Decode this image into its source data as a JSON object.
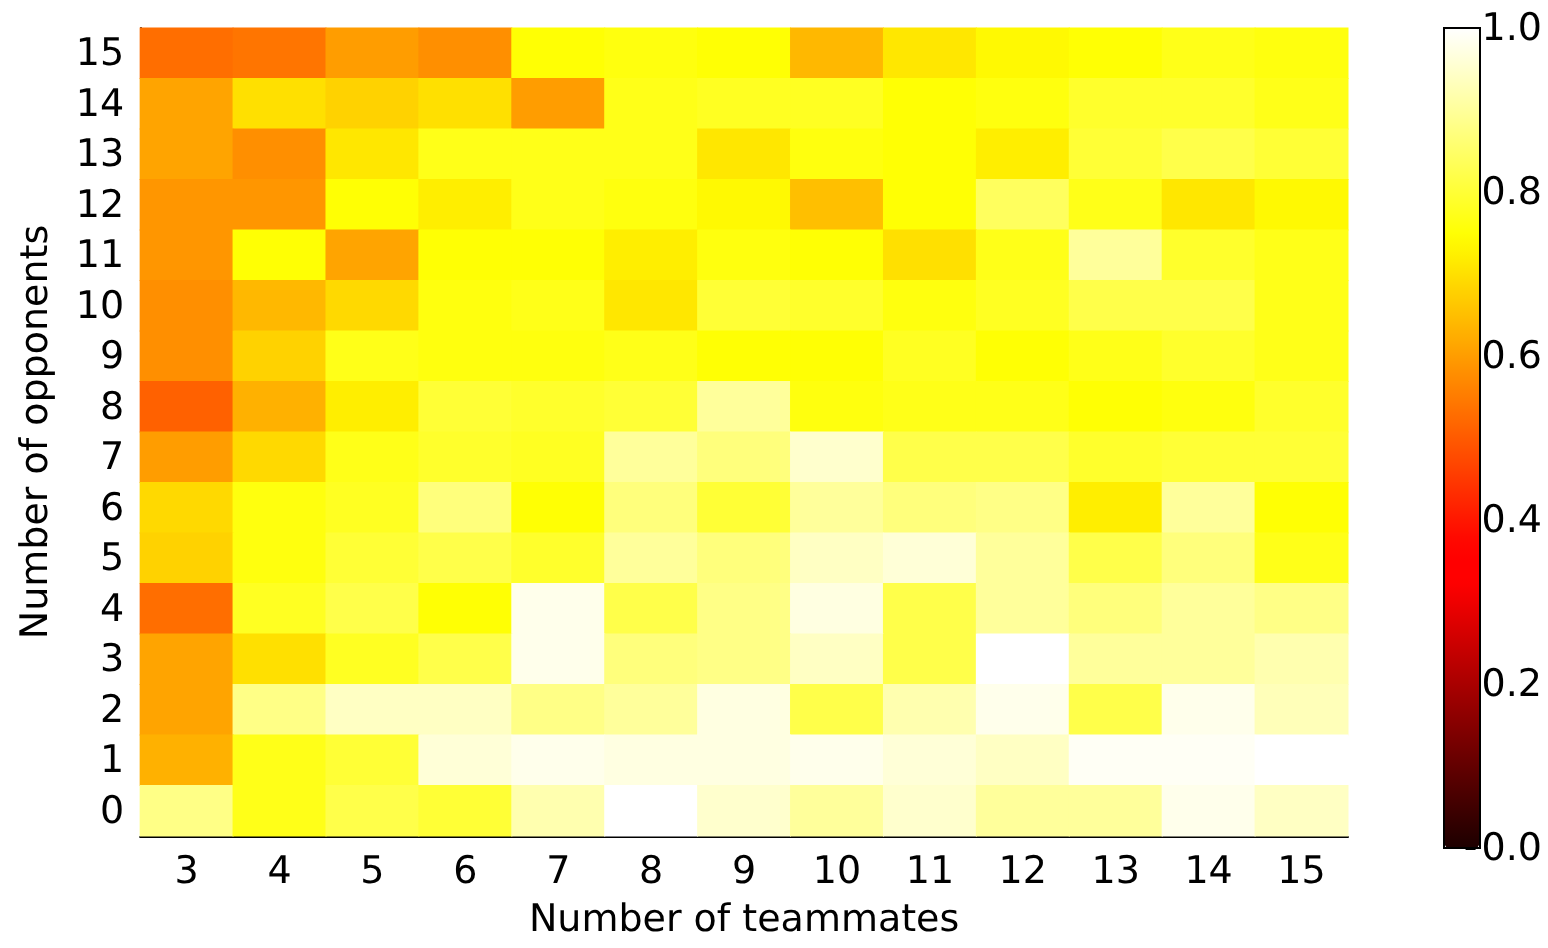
{
  "chart_data": {
    "type": "heatmap",
    "xlabel": "Number of teammates",
    "ylabel": "Number of opponents",
    "categories": [
      "3",
      "4",
      "5",
      "6",
      "7",
      "8",
      "9",
      "10",
      "11",
      "12",
      "13",
      "14",
      "15"
    ],
    "y_categories": [
      "15",
      "14",
      "13",
      "12",
      "11",
      "10",
      "9",
      "8",
      "7",
      "6",
      "5",
      "4",
      "3",
      "2",
      "1",
      "0"
    ],
    "cells": [
      [
        0.53,
        0.54,
        0.6,
        0.58,
        0.75,
        0.76,
        0.75,
        0.64,
        0.71,
        0.74,
        0.75,
        0.77,
        0.76
      ],
      [
        0.61,
        0.7,
        0.68,
        0.7,
        0.6,
        0.77,
        0.78,
        0.78,
        0.75,
        0.76,
        0.79,
        0.79,
        0.77
      ],
      [
        0.61,
        0.58,
        0.71,
        0.77,
        0.77,
        0.77,
        0.71,
        0.76,
        0.75,
        0.72,
        0.8,
        0.82,
        0.8
      ],
      [
        0.59,
        0.59,
        0.75,
        0.72,
        0.77,
        0.76,
        0.74,
        0.65,
        0.75,
        0.84,
        0.77,
        0.71,
        0.74
      ],
      [
        0.59,
        0.75,
        0.61,
        0.75,
        0.75,
        0.72,
        0.76,
        0.75,
        0.7,
        0.77,
        0.9,
        0.79,
        0.77
      ],
      [
        0.58,
        0.64,
        0.69,
        0.76,
        0.77,
        0.71,
        0.8,
        0.79,
        0.76,
        0.78,
        0.82,
        0.82,
        0.77
      ],
      [
        0.58,
        0.68,
        0.77,
        0.76,
        0.76,
        0.77,
        0.75,
        0.75,
        0.78,
        0.75,
        0.77,
        0.79,
        0.77
      ],
      [
        0.51,
        0.63,
        0.72,
        0.8,
        0.79,
        0.8,
        0.9,
        0.76,
        0.77,
        0.77,
        0.75,
        0.76,
        0.79
      ],
      [
        0.6,
        0.69,
        0.77,
        0.79,
        0.78,
        0.9,
        0.87,
        0.95,
        0.82,
        0.82,
        0.79,
        0.8,
        0.8
      ],
      [
        0.69,
        0.76,
        0.78,
        0.87,
        0.75,
        0.87,
        0.8,
        0.9,
        0.87,
        0.88,
        0.72,
        0.9,
        0.75
      ],
      [
        0.68,
        0.76,
        0.8,
        0.82,
        0.79,
        0.9,
        0.87,
        0.94,
        0.96,
        0.9,
        0.82,
        0.87,
        0.77
      ],
      [
        0.53,
        0.78,
        0.82,
        0.75,
        0.98,
        0.82,
        0.88,
        0.97,
        0.82,
        0.9,
        0.87,
        0.9,
        0.88
      ],
      [
        0.61,
        0.7,
        0.78,
        0.82,
        0.98,
        0.87,
        0.88,
        0.94,
        0.82,
        1.0,
        0.9,
        0.9,
        0.92
      ],
      [
        0.61,
        0.88,
        0.94,
        0.94,
        0.88,
        0.9,
        0.97,
        0.82,
        0.92,
        0.98,
        0.82,
        0.98,
        0.93
      ],
      [
        0.63,
        0.77,
        0.8,
        0.96,
        0.98,
        0.97,
        0.97,
        0.98,
        0.96,
        0.94,
        0.99,
        0.99,
        1.0
      ],
      [
        0.88,
        0.77,
        0.82,
        0.8,
        0.92,
        1.0,
        0.95,
        0.9,
        0.95,
        0.9,
        0.9,
        0.98,
        0.94
      ]
    ],
    "clim": [
      0.0,
      1.0
    ],
    "cticks": [
      {
        "value": 0,
        "label": "0.0"
      },
      {
        "value": 0.2,
        "label": "0.2"
      },
      {
        "value": 0.4,
        "label": "0.4"
      },
      {
        "value": 0.6,
        "label": "0.6"
      },
      {
        "value": 0.8,
        "label": "0.8"
      },
      {
        "value": 1,
        "label": "1.0"
      }
    ]
  }
}
